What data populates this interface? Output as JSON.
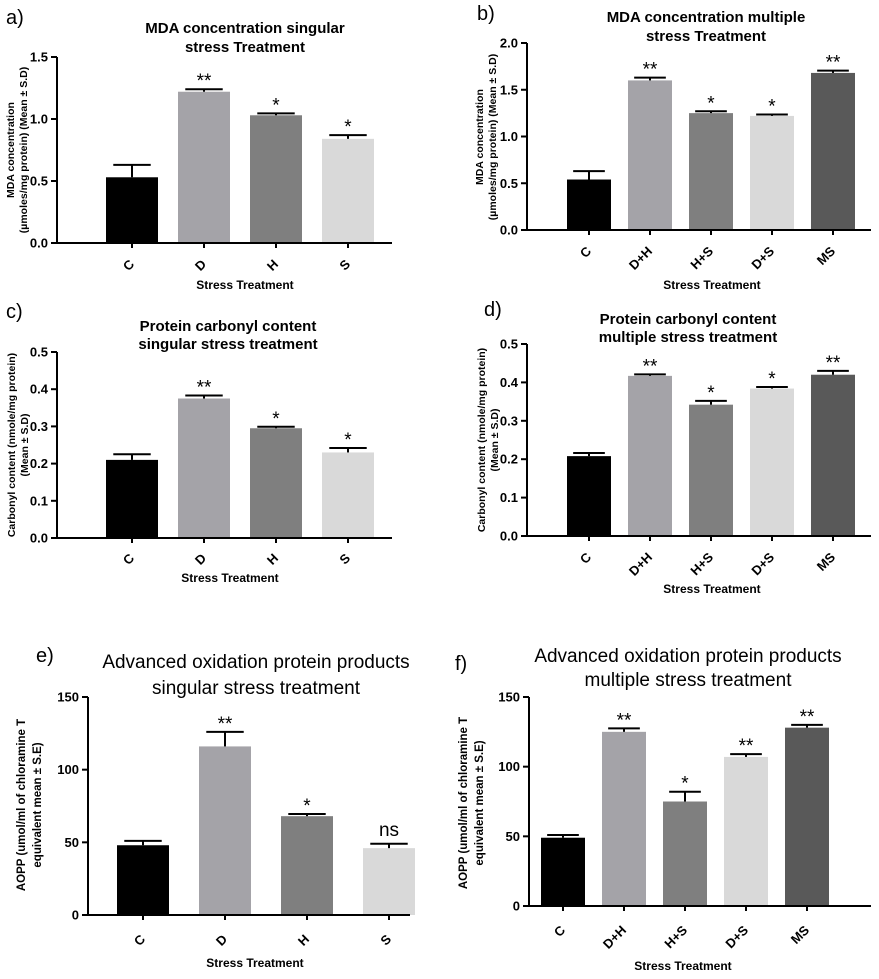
{
  "colors": {
    "C": "#000000",
    "D": "#a4a3a8",
    "H": "#7f7f7f",
    "S": "#d9d9d9",
    "D+H": "#a4a3a8",
    "H+S": "#7f7f7f",
    "D+S": "#d9d9d9",
    "MS": "#595959"
  },
  "chart_data": [
    {
      "type": "bar",
      "panel": "a)",
      "title": [
        "MDA concentration singular",
        "stress Treatment"
      ],
      "ylabel": [
        "MDA concentration",
        "(µmoles/mg protein) (Mean ± S.D)"
      ],
      "xlabel": "Stress Treatment",
      "categories": [
        "C",
        "D",
        "H",
        "S"
      ],
      "values": [
        0.53,
        1.22,
        1.03,
        0.84
      ],
      "errors": [
        0.1,
        0.02,
        0.015,
        0.03
      ],
      "significance": [
        "",
        "**",
        "*",
        "*"
      ],
      "ylim": [
        0,
        1.5
      ],
      "yticks": [
        0.0,
        0.5,
        1.0,
        1.5
      ],
      "ytick_labels": [
        "0.0",
        "0.5",
        "1.0",
        "1.5"
      ]
    },
    {
      "type": "bar",
      "panel": "b)",
      "title": [
        "MDA concentration multiple",
        "stress Treatment"
      ],
      "ylabel": [
        "MDA concentration",
        "(µmoles/mg protein) (Mean ± S.D)"
      ],
      "xlabel": "Stress Treatment",
      "categories": [
        "C",
        "D+H",
        "H+S",
        "D+S",
        "MS"
      ],
      "values": [
        0.54,
        1.6,
        1.25,
        1.22,
        1.68
      ],
      "errors": [
        0.09,
        0.03,
        0.02,
        0.015,
        0.025
      ],
      "significance": [
        "",
        "**",
        "*",
        "*",
        "**"
      ],
      "ylim": [
        0,
        2.0
      ],
      "yticks": [
        0.0,
        0.5,
        1.0,
        1.5,
        2.0
      ],
      "ytick_labels": [
        "0.0",
        "0.5",
        "1.0",
        "1.5",
        "2.0"
      ]
    },
    {
      "type": "bar",
      "panel": "c)",
      "title": [
        "Protein carbonyl content",
        "singular stress treatment"
      ],
      "ylabel": [
        "Carbonyl content (nmole/mg protein)",
        "(Mean ± S.D)"
      ],
      "xlabel": "Stress Treatment",
      "categories": [
        "C",
        "D",
        "H",
        "S"
      ],
      "values": [
        0.21,
        0.375,
        0.295,
        0.23
      ],
      "errors": [
        0.015,
        0.008,
        0.004,
        0.012
      ],
      "significance": [
        "",
        "**",
        "*",
        "*"
      ],
      "ylim": [
        0,
        0.5
      ],
      "yticks": [
        0.0,
        0.1,
        0.2,
        0.3,
        0.4,
        0.5
      ],
      "ytick_labels": [
        "0.0",
        "0.1",
        "0.2",
        "0.3",
        "0.4",
        "0.5"
      ]
    },
    {
      "type": "bar",
      "panel": "d)",
      "title": [
        "Protein carbonyl content",
        "multiple stress treatment"
      ],
      "ylabel": [
        "Carbonyl content (nmole/mg protein)",
        "(Mean ± S.D)"
      ],
      "xlabel": "Stress Treatment",
      "categories": [
        "C",
        "D+H",
        "H+S",
        "D+S",
        "MS"
      ],
      "values": [
        0.208,
        0.417,
        0.342,
        0.384,
        0.42
      ],
      "errors": [
        0.008,
        0.004,
        0.01,
        0.004,
        0.01
      ],
      "significance": [
        "",
        "**",
        "*",
        "*",
        "**"
      ],
      "ylim": [
        0,
        0.5
      ],
      "yticks": [
        0.0,
        0.1,
        0.2,
        0.3,
        0.4,
        0.5
      ],
      "ytick_labels": [
        "0.0",
        "0.1",
        "0.2",
        "0.3",
        "0.4",
        "0.5"
      ]
    },
    {
      "type": "bar",
      "panel": "e)",
      "title": [
        "Advanced oxidation protein products",
        "singular stress treatment"
      ],
      "ylabel": [
        "AOPP (umol/ml of chloramine T",
        "equivalent mean ± S.E)"
      ],
      "xlabel": "Stress Treatment",
      "categories": [
        "C",
        "D",
        "H",
        "S"
      ],
      "values": [
        48,
        116,
        68,
        46
      ],
      "errors": [
        3,
        10,
        1.5,
        3
      ],
      "significance": [
        "",
        "**",
        "*",
        "ns"
      ],
      "ylim": [
        0,
        150
      ],
      "yticks": [
        0,
        50,
        100,
        150
      ],
      "ytick_labels": [
        "0",
        "50",
        "100",
        "150"
      ]
    },
    {
      "type": "bar",
      "panel": "f)",
      "title": [
        "Advanced oxidation protein products",
        "multiple stress treatment"
      ],
      "ylabel": [
        "AOPP (umol/ml of chloramine T",
        "equivalent mean ± S.E)"
      ],
      "xlabel": "Stress Treatment",
      "categories": [
        "C",
        "D+H",
        "H+S",
        "D+S",
        "MS"
      ],
      "values": [
        49,
        125,
        75,
        107,
        128
      ],
      "errors": [
        2,
        2.5,
        7,
        2,
        2
      ],
      "significance": [
        "",
        "**",
        "*",
        "**",
        "**"
      ],
      "ylim": [
        0,
        150
      ],
      "yticks": [
        0,
        50,
        100,
        150
      ],
      "ytick_labels": [
        "0",
        "50",
        "100",
        "150"
      ]
    }
  ]
}
